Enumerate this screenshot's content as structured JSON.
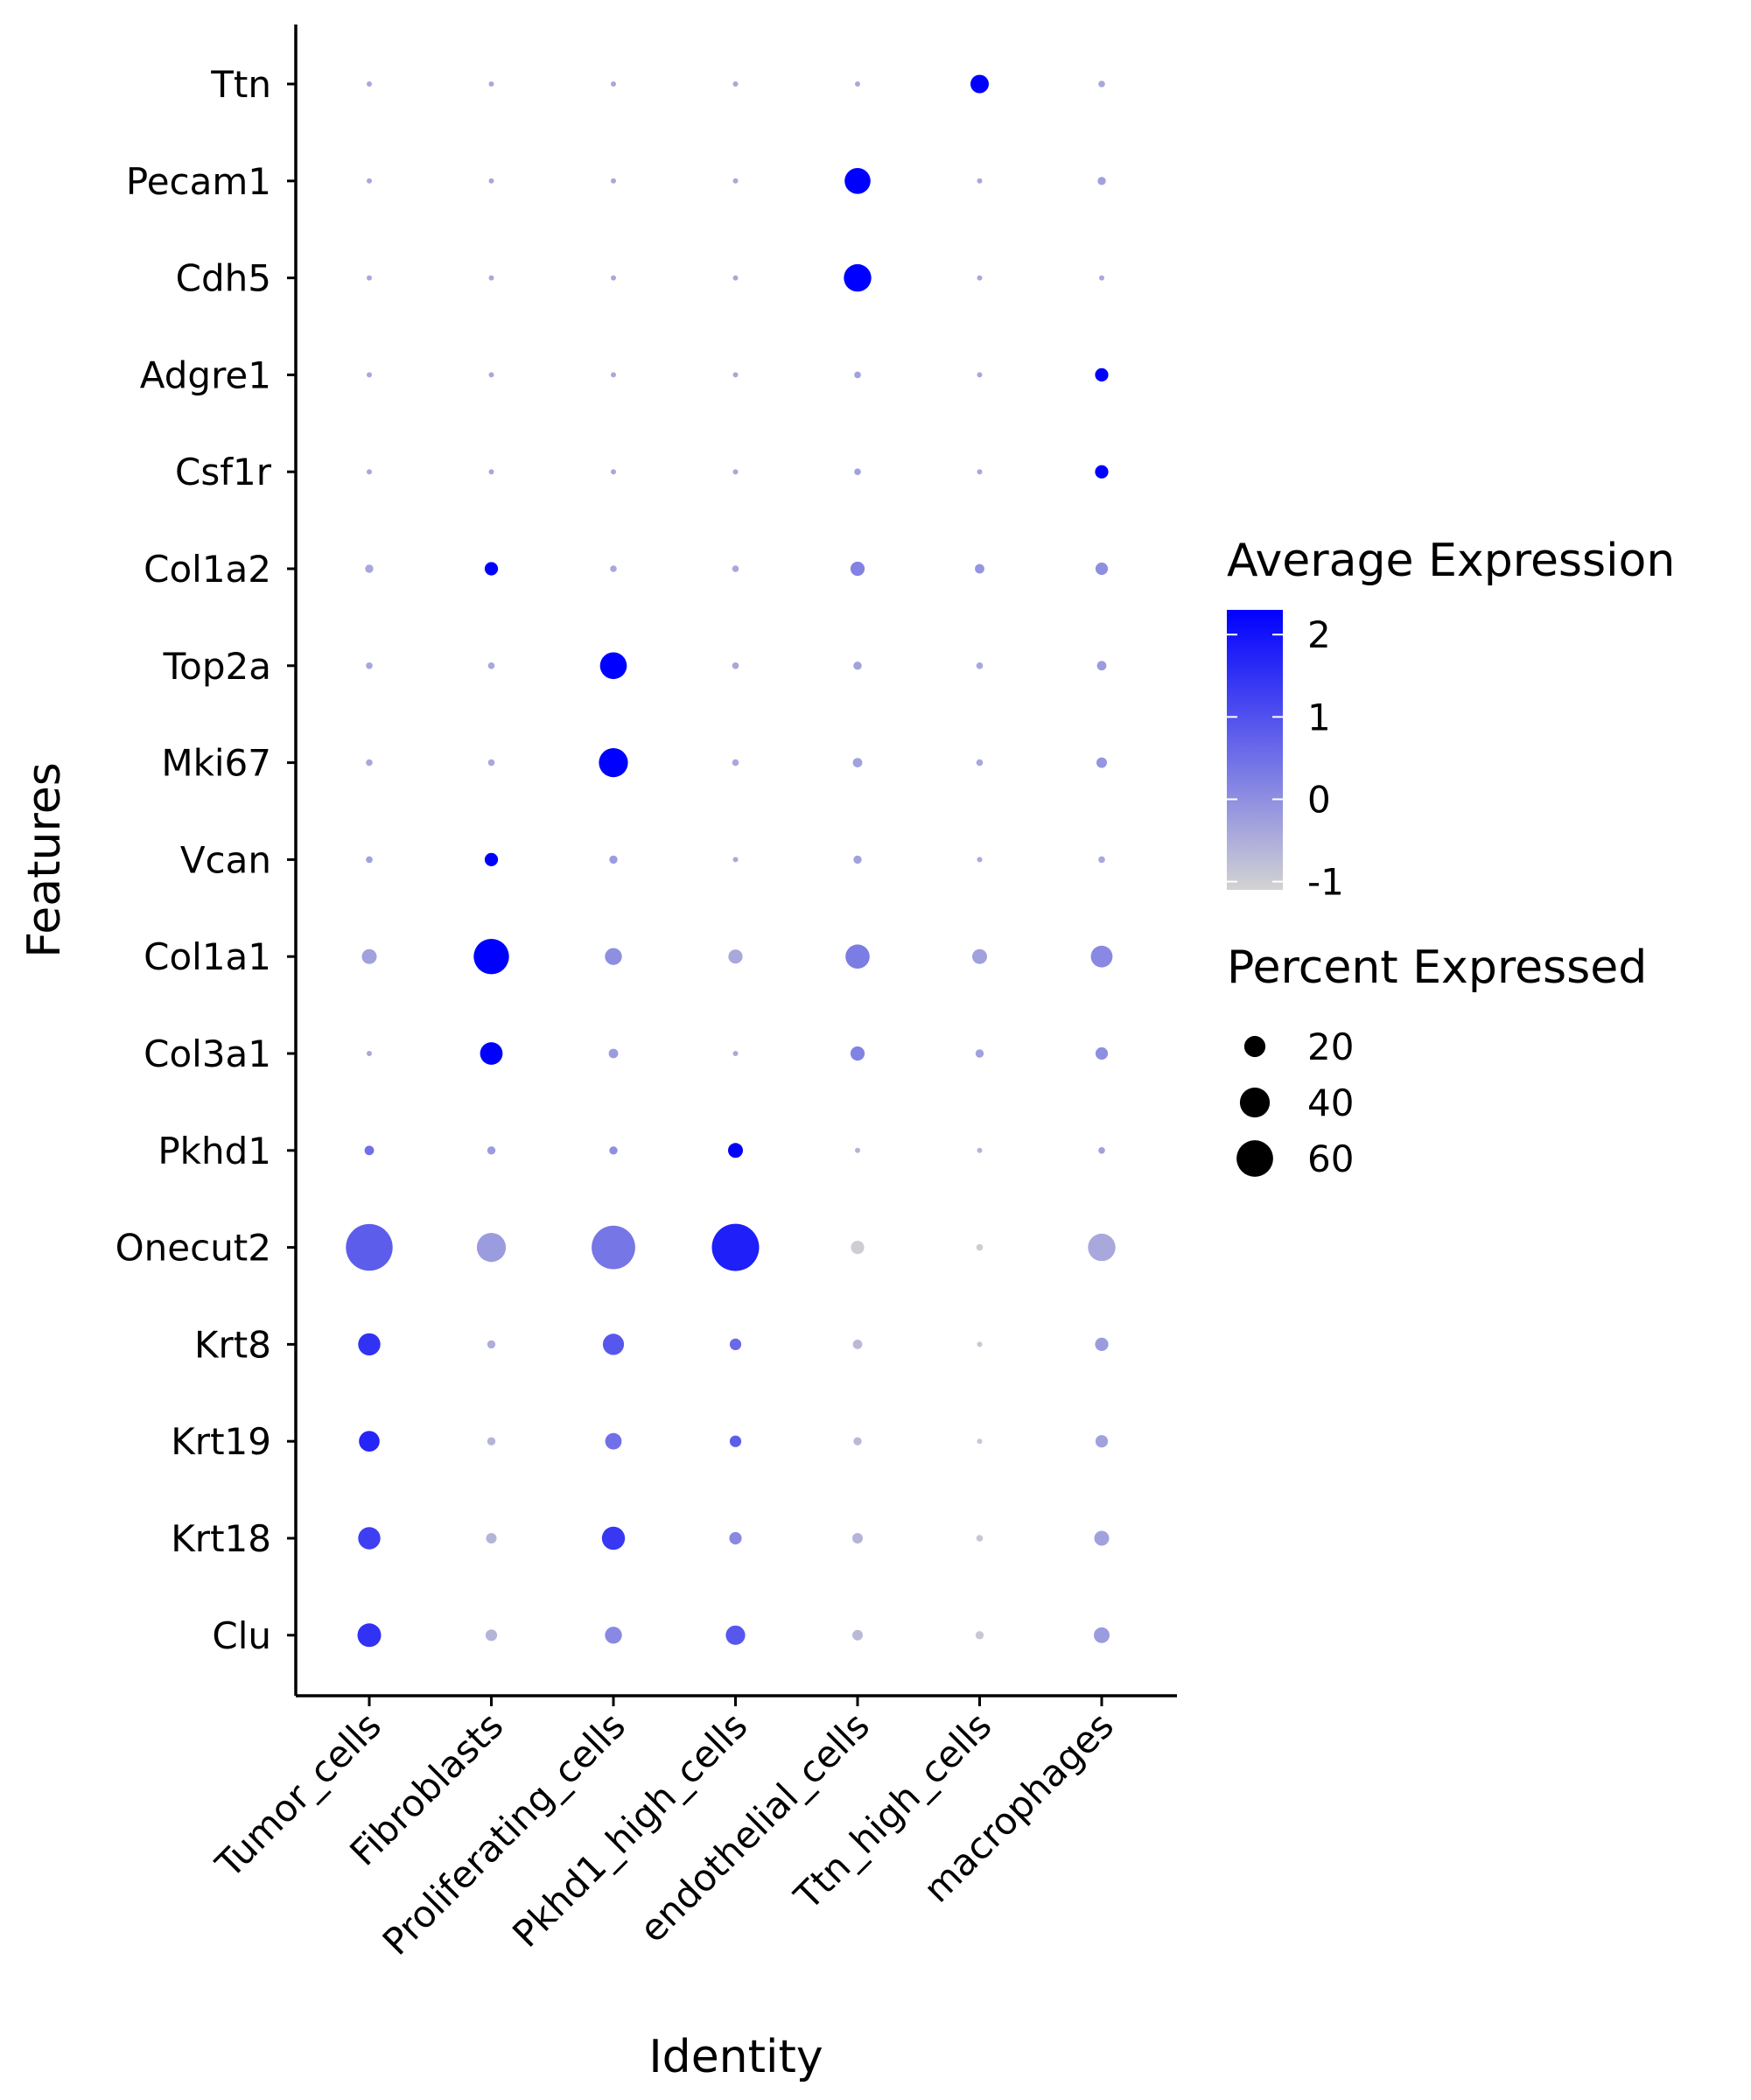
{
  "chart_data": {
    "type": "dotplot",
    "xlabel": "Identity",
    "ylabel": "Features",
    "categories": [
      "Tumor_cells",
      "Fibroblasts",
      "Proliferating_cells",
      "Pkhd1_high_cells",
      "endothelial_cells",
      "Ttn_high_cells",
      "macrophages"
    ],
    "features": [
      "Ttn",
      "Pecam1",
      "Cdh5",
      "Adgre1",
      "Csf1r",
      "Col1a2",
      "Top2a",
      "Mki67",
      "Vcan",
      "Col1a1",
      "Col3a1",
      "Pkhd1",
      "Onecut2",
      "Krt8",
      "Krt19",
      "Krt18",
      "Clu"
    ],
    "avg_expression": [
      [
        -0.4,
        -0.4,
        -0.4,
        -0.4,
        -0.4,
        2.3,
        -0.4
      ],
      [
        -0.4,
        -0.4,
        -0.4,
        -0.4,
        2.3,
        -0.4,
        -0.3
      ],
      [
        -0.4,
        -0.4,
        -0.4,
        -0.4,
        2.3,
        -0.4,
        -0.4
      ],
      [
        -0.4,
        -0.4,
        -0.4,
        -0.4,
        -0.3,
        -0.4,
        2.3
      ],
      [
        -0.4,
        -0.4,
        -0.4,
        -0.4,
        -0.3,
        -0.4,
        2.3
      ],
      [
        -0.4,
        2.3,
        -0.4,
        -0.4,
        0.2,
        -0.1,
        0.0
      ],
      [
        -0.4,
        -0.4,
        2.3,
        -0.4,
        -0.3,
        -0.4,
        -0.2
      ],
      [
        -0.4,
        -0.4,
        2.3,
        -0.4,
        -0.3,
        -0.4,
        -0.1
      ],
      [
        -0.3,
        2.3,
        -0.2,
        -0.4,
        -0.3,
        -0.4,
        -0.4
      ],
      [
        -0.3,
        2.3,
        0.0,
        -0.4,
        0.3,
        -0.3,
        0.1
      ],
      [
        -0.4,
        2.3,
        -0.2,
        -0.4,
        0.2,
        -0.3,
        0.0
      ],
      [
        0.5,
        -0.2,
        0.0,
        2.3,
        -0.6,
        -0.6,
        -0.3
      ],
      [
        0.8,
        -0.2,
        0.4,
        1.8,
        -1.0,
        -1.0,
        -0.4
      ],
      [
        1.5,
        -0.5,
        0.9,
        0.6,
        -0.7,
        -0.9,
        -0.2
      ],
      [
        1.7,
        -0.6,
        0.5,
        0.8,
        -0.7,
        -0.9,
        -0.3
      ],
      [
        1.3,
        -0.6,
        1.4,
        0.1,
        -0.6,
        -0.9,
        -0.3
      ],
      [
        1.5,
        -0.6,
        0.1,
        0.9,
        -0.7,
        -0.9,
        -0.2
      ]
    ],
    "pct_expressed": [
      [
        1,
        1,
        1,
        1,
        1,
        15,
        2
      ],
      [
        1,
        1,
        1,
        1,
        30,
        1,
        3
      ],
      [
        1,
        1,
        1,
        1,
        34,
        1,
        1
      ],
      [
        1,
        1,
        1,
        1,
        2,
        1,
        8
      ],
      [
        1,
        1,
        1,
        1,
        2,
        1,
        8
      ],
      [
        3,
        8,
        2,
        2,
        9,
        4,
        7
      ],
      [
        2,
        2,
        32,
        2,
        3,
        2,
        4
      ],
      [
        2,
        2,
        38,
        2,
        4,
        2,
        5
      ],
      [
        2,
        8,
        3,
        1,
        3,
        1,
        2
      ],
      [
        10,
        56,
        13,
        9,
        26,
        10,
        21
      ],
      [
        1,
        23,
        4,
        1,
        9,
        3,
        7
      ],
      [
        4,
        3,
        3,
        10,
        1,
        1,
        2
      ],
      [
        98,
        38,
        85,
        100,
        8,
        2,
        34
      ],
      [
        22,
        3,
        20,
        6,
        4,
        1,
        8
      ],
      [
        19,
        3,
        12,
        6,
        3,
        1,
        7
      ],
      [
        22,
        5,
        24,
        7,
        5,
        2,
        10
      ],
      [
        25,
        6,
        13,
        17,
        5,
        3,
        11
      ]
    ],
    "legend_color": {
      "title": "Average Expression",
      "ticks": [
        "2",
        "1",
        "0",
        "-1"
      ],
      "tick_values": [
        2,
        1,
        0,
        -1
      ],
      "range": [
        -1.1,
        2.3
      ],
      "low_color": "#d3d3d3",
      "high_color": "#0000ff"
    },
    "legend_size": {
      "title": "Percent Expressed",
      "ticks": [
        "20",
        "40",
        "60"
      ],
      "tick_values": [
        20,
        40,
        60
      ]
    }
  }
}
